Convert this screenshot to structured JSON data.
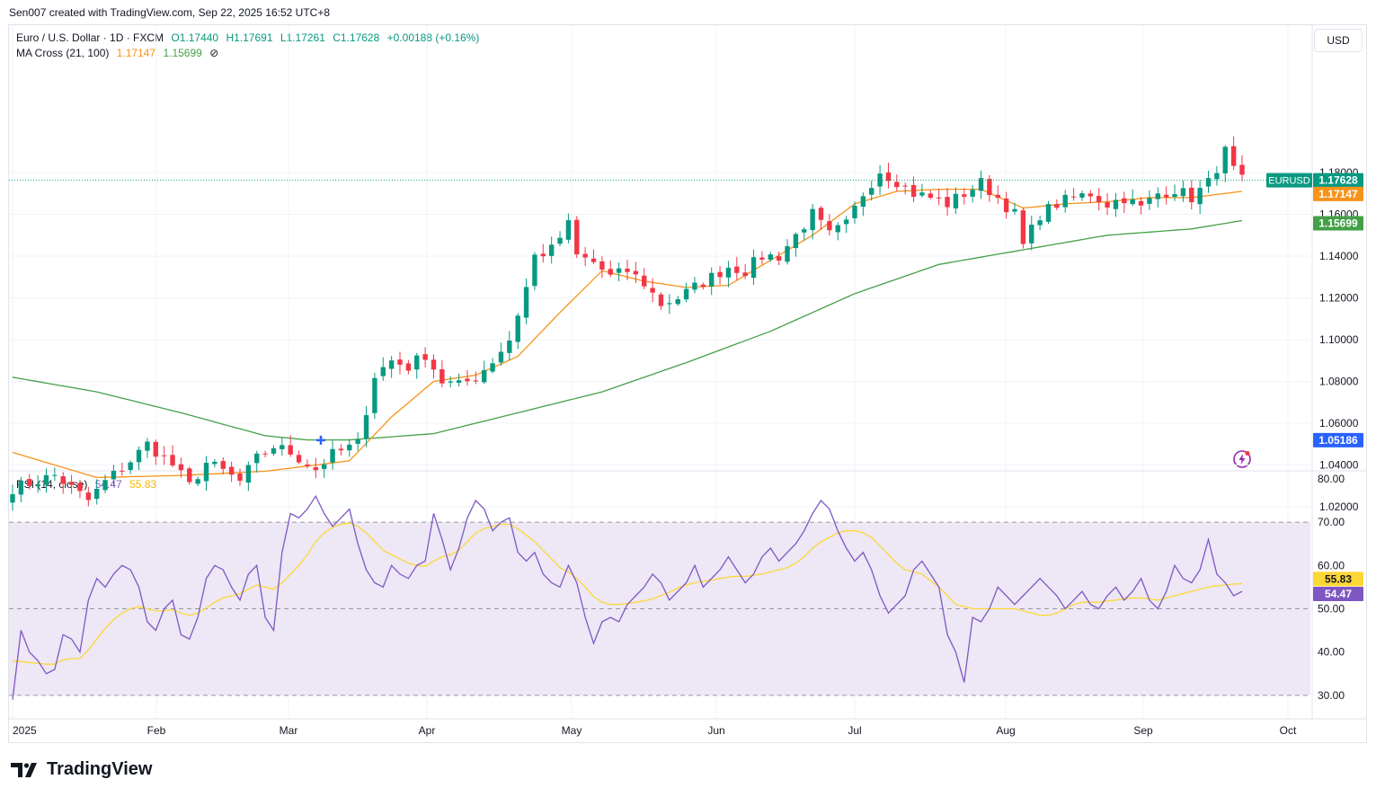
{
  "header": {
    "caption": "Sen007 created with TradingView.com, Sep 22, 2025 16:52 UTC+8",
    "symbol_name": "Euro / U.S. Dollar · 1D · FXCM",
    "ohlc": {
      "o": "O1.17440",
      "h": "H1.17691",
      "l": "L1.17261",
      "c": "C1.17628",
      "chg": "+0.00188 (+0.16%)"
    },
    "ma_label": "MA Cross (21, 100)",
    "ma_fast_value": "1.17147",
    "ma_slow_value": "1.15699",
    "currency_button": "USD"
  },
  "rsi_legend": {
    "label": "RSI (14, close)",
    "rsi_value": "54.47",
    "ma_value": "55.83"
  },
  "footer": {
    "brand": "TradingView"
  },
  "colors": {
    "up": "#089981",
    "down": "#f23645",
    "ma_fast": "#f7931a",
    "ma_slow": "#43a047",
    "rsi": "#7e57c2",
    "rsi_ma": "#fdd835",
    "rsi_band": "#ede7f6",
    "cross_marker": "#2962ff"
  },
  "chart_data": [
    {
      "type": "candlestick",
      "title": "Euro / U.S. Dollar · 1D · FXCM",
      "y_ticks": [
        "1.02000",
        "1.04000",
        "1.06000",
        "1.08000",
        "1.10000",
        "1.12000",
        "1.14000",
        "1.16000",
        "1.18000"
      ],
      "ylim": [
        1.0,
        1.196
      ],
      "x_ticks": [
        "2025",
        "Feb",
        "Mar",
        "Apr",
        "May",
        "Jun",
        "Jul",
        "Aug",
        "Sep",
        "Oct"
      ],
      "price_labels": [
        {
          "name": "EURUSD",
          "value": "1.17628",
          "color": "#089981"
        },
        {
          "name": "",
          "value": "1.17147",
          "color": "#f7931a"
        },
        {
          "name": "",
          "value": "1.15699",
          "color": "#43a047"
        },
        {
          "name": "",
          "value": "1.05186",
          "color": "#2962ff"
        }
      ],
      "anchors": [
        [
          1,
          1.03
        ],
        [
          5,
          1.035
        ],
        [
          9,
          1.023
        ],
        [
          11,
          1.032
        ],
        [
          14,
          1.042
        ],
        [
          16,
          1.05
        ],
        [
          19,
          1.04
        ],
        [
          21,
          1.03
        ],
        [
          23,
          1.041
        ],
        [
          25,
          1.037
        ],
        [
          27,
          1.032
        ],
        [
          29,
          1.043
        ],
        [
          31,
          1.049
        ],
        [
          33,
          1.046
        ],
        [
          36,
          1.038
        ],
        [
          38,
          1.045
        ],
        [
          41,
          1.05
        ],
        [
          43,
          1.083
        ],
        [
          45,
          1.09
        ],
        [
          47,
          1.087
        ],
        [
          49,
          1.093
        ],
        [
          51,
          1.08
        ],
        [
          53,
          1.078
        ],
        [
          55,
          1.082
        ],
        [
          57,
          1.09
        ],
        [
          59,
          1.1
        ],
        [
          61,
          1.125
        ],
        [
          62,
          1.14
        ],
        [
          64,
          1.143
        ],
        [
          66,
          1.155
        ],
        [
          67,
          1.14
        ],
        [
          69,
          1.137
        ],
        [
          71,
          1.13
        ],
        [
          73,
          1.133
        ],
        [
          75,
          1.127
        ],
        [
          77,
          1.117
        ],
        [
          79,
          1.12
        ],
        [
          81,
          1.125
        ],
        [
          83,
          1.13
        ],
        [
          85,
          1.135
        ],
        [
          87,
          1.133
        ],
        [
          89,
          1.14
        ],
        [
          91,
          1.14
        ],
        [
          93,
          1.15
        ],
        [
          95,
          1.16
        ],
        [
          97,
          1.15
        ],
        [
          99,
          1.155
        ],
        [
          101,
          1.17
        ],
        [
          103,
          1.181
        ],
        [
          105,
          1.176
        ],
        [
          107,
          1.17
        ],
        [
          109,
          1.168
        ],
        [
          111,
          1.165
        ],
        [
          113,
          1.17
        ],
        [
          115,
          1.175
        ],
        [
          117,
          1.168
        ],
        [
          119,
          1.16
        ],
        [
          120,
          1.145
        ],
        [
          122,
          1.16
        ],
        [
          124,
          1.165
        ],
        [
          126,
          1.168
        ],
        [
          128,
          1.17
        ],
        [
          130,
          1.165
        ],
        [
          132,
          1.168
        ],
        [
          134,
          1.163
        ],
        [
          136,
          1.17
        ],
        [
          138,
          1.172
        ],
        [
          140,
          1.168
        ],
        [
          142,
          1.175
        ],
        [
          144,
          1.19
        ],
        [
          145,
          1.181
        ],
        [
          146,
          1.176
        ]
      ],
      "ma_fast_anchors": [
        [
          0,
          1.046
        ],
        [
          10,
          1.034
        ],
        [
          20,
          1.035
        ],
        [
          30,
          1.037
        ],
        [
          40,
          1.042
        ],
        [
          45,
          1.063
        ],
        [
          50,
          1.08
        ],
        [
          55,
          1.083
        ],
        [
          60,
          1.092
        ],
        [
          65,
          1.113
        ],
        [
          70,
          1.133
        ],
        [
          75,
          1.128
        ],
        [
          80,
          1.125
        ],
        [
          85,
          1.126
        ],
        [
          90,
          1.138
        ],
        [
          95,
          1.15
        ],
        [
          100,
          1.165
        ],
        [
          105,
          1.171
        ],
        [
          110,
          1.172
        ],
        [
          115,
          1.172
        ],
        [
          120,
          1.163
        ],
        [
          125,
          1.165
        ],
        [
          130,
          1.166
        ],
        [
          135,
          1.168
        ],
        [
          140,
          1.168
        ],
        [
          146,
          1.171
        ]
      ],
      "ma_slow_anchors": [
        [
          0,
          1.082
        ],
        [
          10,
          1.075
        ],
        [
          20,
          1.065
        ],
        [
          30,
          1.054
        ],
        [
          35,
          1.052
        ],
        [
          40,
          1.052
        ],
        [
          50,
          1.055
        ],
        [
          60,
          1.065
        ],
        [
          70,
          1.075
        ],
        [
          80,
          1.089
        ],
        [
          90,
          1.104
        ],
        [
          100,
          1.122
        ],
        [
          110,
          1.136
        ],
        [
          120,
          1.143
        ],
        [
          130,
          1.15
        ],
        [
          140,
          1.153
        ],
        [
          146,
          1.157
        ]
      ]
    },
    {
      "type": "line",
      "title": "RSI (14, close)",
      "ylim": [
        27,
        82
      ],
      "y_ticks": [
        "30.00",
        "40.00",
        "50.00",
        "60.00",
        "70.00",
        "80.00"
      ],
      "bands": [
        30,
        50,
        70
      ],
      "series": [
        {
          "name": "",
          "values": [
            29,
            45,
            40,
            38,
            35,
            36,
            44,
            43,
            40,
            52,
            57,
            55,
            58,
            60,
            59,
            55,
            47,
            45,
            50,
            52,
            44,
            43,
            48,
            57,
            60,
            59,
            55,
            52,
            58,
            60,
            48,
            45,
            63,
            72,
            71,
            73,
            76,
            72,
            69,
            71,
            73,
            65,
            59,
            56,
            55,
            60,
            58,
            57,
            60,
            61,
            72,
            66,
            59,
            64,
            71,
            75,
            73,
            68,
            70,
            71,
            63,
            61,
            63,
            58,
            56,
            55,
            60,
            56,
            48,
            42,
            47,
            48,
            47,
            51,
            53,
            55,
            58,
            56,
            52,
            54,
            56,
            60,
            55,
            57,
            59,
            62,
            59,
            56,
            58,
            62,
            64,
            61,
            63,
            65,
            68,
            72,
            75,
            73,
            68,
            64,
            61,
            63,
            59,
            53,
            49,
            51,
            53,
            59,
            61,
            58,
            55,
            44,
            40,
            33,
            48,
            47,
            50,
            55,
            53,
            51,
            53,
            55,
            57,
            55,
            53,
            50,
            52,
            54,
            51,
            50,
            53,
            55,
            52,
            54,
            57,
            52,
            50,
            54,
            60,
            57,
            56,
            59,
            66,
            58,
            56,
            53,
            54
          ]
        },
        {
          "name": "",
          "values": [
            38,
            37.8,
            37.6,
            37.4,
            37.2,
            37.2,
            38.2,
            38.5,
            38.5,
            40.5,
            43,
            45.5,
            47.5,
            49,
            50,
            50.5,
            50,
            49.5,
            49.5,
            49.8,
            49,
            48.5,
            49,
            50.2,
            51.5,
            52.5,
            53,
            53.5,
            54.5,
            55.5,
            55,
            54.5,
            56,
            58,
            60,
            62.5,
            65.5,
            67.5,
            68.8,
            69.5,
            69.8,
            69,
            67.5,
            65.5,
            63.5,
            62.5,
            61.5,
            60.5,
            60,
            59.8,
            61,
            62,
            62.5,
            63.5,
            65.5,
            67.5,
            68.5,
            69,
            69.5,
            69.5,
            68.5,
            67,
            65.5,
            63.5,
            61.5,
            59.5,
            58.5,
            57,
            55,
            52.8,
            51.5,
            51,
            51,
            51.2,
            51.5,
            51.8,
            52.3,
            53,
            53.8,
            54.8,
            55.5,
            56,
            56.3,
            56.6,
            57,
            57.3,
            57.5,
            57.5,
            57.7,
            58,
            58.5,
            59,
            59.5,
            60.5,
            62,
            64,
            65.5,
            66.5,
            67.5,
            68,
            68,
            67.5,
            66.5,
            64.5,
            62.5,
            60.5,
            59,
            58.5,
            58,
            56.5,
            55,
            53,
            51,
            50.5,
            50,
            50,
            50,
            50,
            50,
            50,
            49.5,
            49,
            48.5,
            48.5,
            49,
            50,
            51,
            51.5,
            51.5,
            51.5,
            51.8,
            52,
            52.3,
            52.5,
            52.5,
            52.3,
            52,
            52.5,
            53,
            53.5,
            54,
            54.5,
            55,
            55.3,
            55.5,
            55.7,
            55.8
          ]
        }
      ]
    }
  ]
}
